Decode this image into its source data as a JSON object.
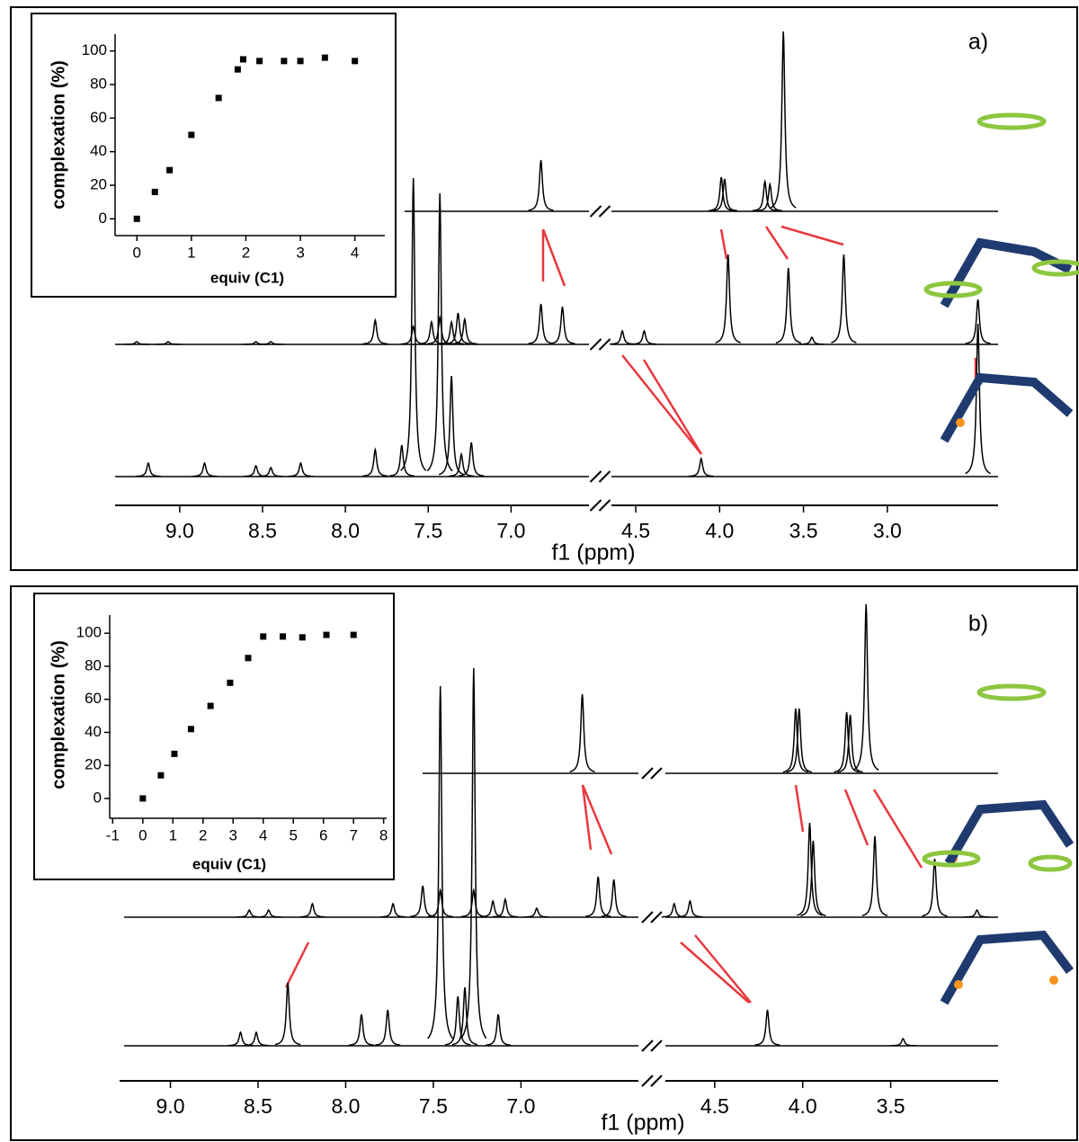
{
  "chart_data": [
    {
      "type": "scatter",
      "xlabel": "equiv (C1)",
      "ylabel": "complexation (%)",
      "x": [
        0,
        0.33,
        0.6,
        1.0,
        1.5,
        1.85,
        1.95,
        2.25,
        2.7,
        3.0,
        3.45,
        4.0
      ],
      "values": [
        0,
        16,
        29,
        50,
        72,
        89,
        95,
        94,
        94,
        94,
        96,
        94
      ],
      "color": "#000000",
      "xlim": [
        -0.4,
        4.55
      ],
      "ylim": [
        -10,
        110
      ],
      "xticks": [
        0,
        1,
        2,
        3,
        4
      ],
      "yticks": [
        0,
        20,
        40,
        60,
        80,
        100
      ]
    },
    {
      "type": "spectrum",
      "xlabel": "f1 (ppm)",
      "annotation": "a)",
      "color": "#000000",
      "guide_color": "#e8383d",
      "segments": [
        {
          "xlim": [
            9.39,
            6.53
          ],
          "xticks": [
            {
              "value": 9,
              "label": "9.0"
            },
            {
              "value": 8.5,
              "label": "8.5"
            },
            {
              "value": 8,
              "label": "8.0"
            },
            {
              "value": 7.5,
              "label": "7.5"
            },
            {
              "value": 7,
              "label": "7.0"
            }
          ]
        },
        {
          "xlim": [
            4.645,
            2.34
          ],
          "xticks": [
            {
              "value": 4.5,
              "label": "4.5"
            },
            {
              "value": 4,
              "label": "4.0"
            },
            {
              "value": 3.5,
              "label": "3.5"
            },
            {
              "value": 3,
              "label": "3.0"
            }
          ]
        }
      ],
      "series": [
        {
          "x": [
            6.82,
            3.99,
            3.97,
            3.73,
            3.7,
            3.62
          ],
          "values": [
            57,
            38,
            36,
            33,
            30,
            200
          ]
        },
        {
          "x": [
            9.26,
            9.07,
            8.54,
            8.45,
            7.82,
            7.59,
            7.48,
            7.43,
            7.36,
            7.32,
            7.28,
            6.82,
            6.69,
            4.58,
            4.45,
            3.95,
            3.59,
            3.45,
            3.26,
            2.46
          ],
          "values": [
            3,
            3,
            3,
            3,
            27,
            20,
            25,
            30,
            25,
            35,
            28,
            45,
            42,
            15,
            15,
            100,
            85,
            8,
            100,
            50
          ]
        },
        {
          "x": [
            9.19,
            8.85,
            8.54,
            8.45,
            8.27,
            7.82,
            7.66,
            7.59,
            7.43,
            7.36,
            7.3,
            7.24,
            4.11,
            2.46
          ],
          "values": [
            15,
            15,
            12,
            10,
            15,
            30,
            35,
            332,
            315,
            112,
            25,
            38,
            20,
            170
          ]
        }
      ]
    },
    {
      "type": "scatter",
      "xlabel": "equiv (C1)",
      "ylabel": "complexation (%)",
      "x": [
        0,
        0.6,
        1.05,
        1.6,
        2.25,
        2.9,
        3.5,
        4.0,
        4.65,
        5.3,
        6.1,
        7.0
      ],
      "values": [
        0,
        14,
        27,
        42,
        56,
        70,
        85,
        98,
        98,
        97.5,
        99,
        99
      ],
      "color": "#000000",
      "xlim": [
        -1.1,
        8.1
      ],
      "ylim": [
        -12,
        111
      ],
      "xticks": [
        -1,
        0,
        1,
        2,
        3,
        4,
        5,
        6,
        7,
        8
      ],
      "yticks": [
        0,
        20,
        40,
        60,
        80,
        100
      ]
    },
    {
      "type": "spectrum",
      "xlabel": "f1 (ppm)",
      "annotation": "b)",
      "color": "#000000",
      "guide_color": "#e8383d",
      "segments": [
        {
          "xlim": [
            9.29,
            6.33
          ],
          "xticks": [
            {
              "value": 9,
              "label": "9.0"
            },
            {
              "value": 8.5,
              "label": "8.5"
            },
            {
              "value": 8,
              "label": "8.0"
            },
            {
              "value": 7.5,
              "label": "7.5"
            },
            {
              "value": 7,
              "label": "7.0"
            }
          ]
        },
        {
          "xlim": [
            4.78,
            2.89
          ],
          "xticks": [
            {
              "value": 4.5,
              "label": "4.5"
            },
            {
              "value": 4,
              "label": "4.0"
            },
            {
              "value": 3.5,
              "label": "3.5"
            }
          ]
        }
      ],
      "series": [
        {
          "x": [
            6.65,
            4.04,
            4.02,
            3.75,
            3.73,
            3.64
          ],
          "values": [
            88,
            72,
            72,
            68,
            65,
            188
          ]
        },
        {
          "x": [
            8.55,
            8.44,
            8.19,
            7.73,
            7.56,
            7.46,
            7.27,
            7.16,
            7.09,
            6.91,
            6.56,
            6.47,
            4.73,
            4.64,
            3.96,
            3.94,
            3.59,
            3.25,
            3.01
          ],
          "values": [
            8,
            8,
            15,
            15,
            35,
            30,
            30,
            18,
            20,
            10,
            45,
            42,
            15,
            18,
            105,
            85,
            90,
            65,
            8
          ]
        },
        {
          "x": [
            8.6,
            8.51,
            8.33,
            7.91,
            7.76,
            7.46,
            7.36,
            7.32,
            7.27,
            7.13,
            4.2,
            3.43
          ],
          "values": [
            15,
            15,
            70,
            35,
            40,
            400,
            55,
            65,
            420,
            35,
            40,
            8
          ]
        }
      ]
    }
  ]
}
